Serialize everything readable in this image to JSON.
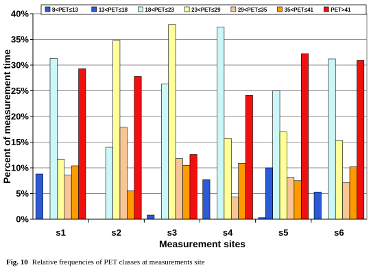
{
  "chart_data": {
    "type": "bar",
    "xlabel": "Measurement sites",
    "ylabel": "Percent of measurement time",
    "ylim": [
      0,
      40
    ],
    "yticks": [
      "0%",
      "5%",
      "10%",
      "15%",
      "20%",
      "25%",
      "30%",
      "35%",
      "40%"
    ],
    "categories": [
      "s1",
      "s2",
      "s3",
      "s4",
      "s5",
      "s6"
    ],
    "legend_position": "top",
    "series": [
      {
        "name": "8<PET≤13",
        "color": "#2a5ad6",
        "values": [
          8.8,
          0,
          0.8,
          7.7,
          0.3,
          5.3
        ]
      },
      {
        "name": "13<PET≤18",
        "color": "#2a5ad6",
        "values": [
          0,
          0,
          0,
          0,
          10.0,
          0
        ]
      },
      {
        "name": "18<PET≤23",
        "color": "#ccf7f8",
        "values": [
          31.3,
          14.0,
          26.3,
          37.4,
          25.0,
          31.2
        ]
      },
      {
        "name": "23<PET≤29",
        "color": "#ffff99",
        "values": [
          11.7,
          34.8,
          37.9,
          15.7,
          17.0,
          15.3
        ]
      },
      {
        "name": "29<PET≤35",
        "color": "#f8c596",
        "values": [
          8.6,
          17.9,
          11.8,
          4.3,
          8.1,
          7.1
        ]
      },
      {
        "name": "35<PET≤41",
        "color": "#ff9a00",
        "values": [
          10.4,
          5.5,
          10.5,
          10.9,
          7.5,
          10.2
        ]
      },
      {
        "name": "PET>41",
        "color": "#f01010",
        "values": [
          29.3,
          27.8,
          12.6,
          24.1,
          32.2,
          30.9
        ]
      }
    ]
  },
  "caption": {
    "figure": "Fig. 10",
    "text": "Relative frequencies of PET classes at measurements site"
  }
}
